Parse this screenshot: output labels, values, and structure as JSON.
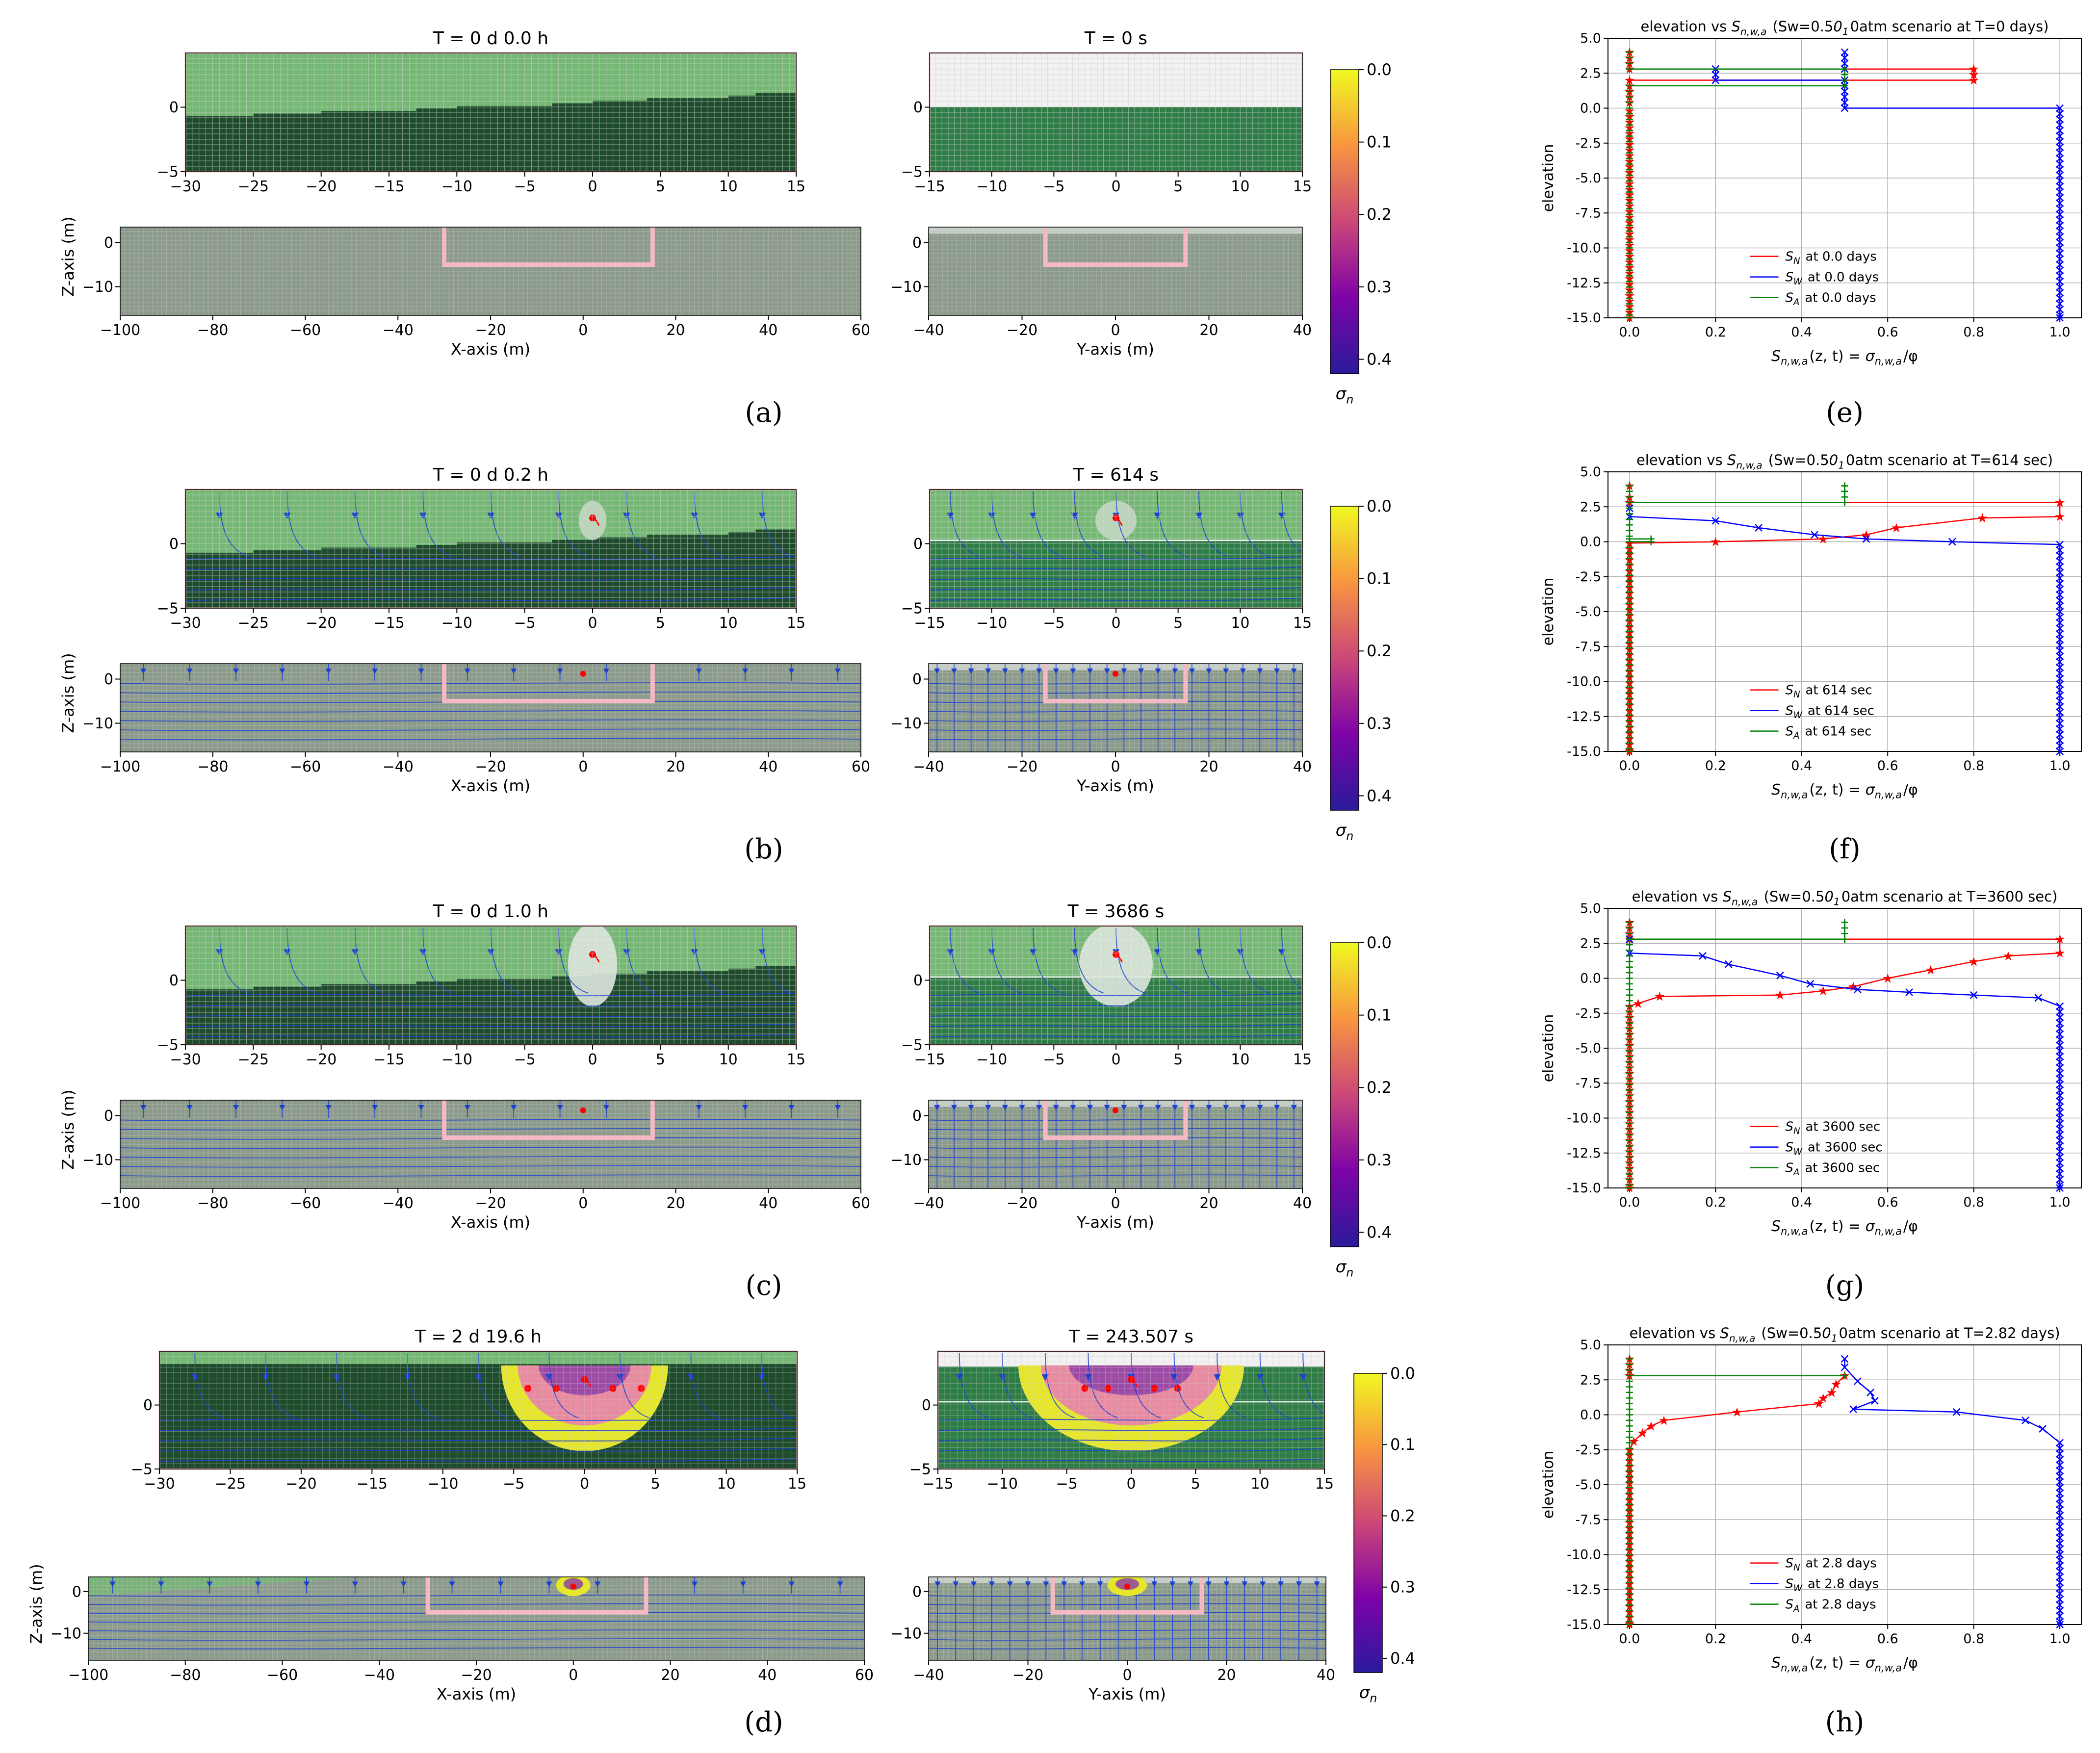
{
  "colors": {
    "light_green": "#74b874",
    "dark_green": "#1d4b2b",
    "mid_green": "#2e7d46",
    "background_grey": "#8c9a8c",
    "white_zone": "#f2f2f2",
    "frame_pink": "#f4b9c2",
    "streamline": "#1a3fd1",
    "tracer": "#ff0000",
    "n_line": "#ff0000",
    "w_line": "#0000ff",
    "a_line": "#008000",
    "plume_yellow": "#e6e62a",
    "plume_pink": "#e88aa0",
    "plume_purple": "#8a3aa8"
  },
  "colorbar": {
    "label": "σ_n",
    "ticks": [
      "0.0",
      "0.1",
      "0.2",
      "0.3",
      "0.4"
    ],
    "tick_values": [
      0.0,
      0.1,
      0.2,
      0.3,
      0.4
    ],
    "colormap": "plasma_r",
    "vmin": 0.0,
    "vmax": 0.42
  },
  "maps": {
    "x_zoom_ticks": [
      "−30",
      "−25",
      "−20",
      "−15",
      "−10",
      "−5",
      "0",
      "5",
      "10",
      "15"
    ],
    "x_zoom_tick_values": [
      -30,
      -25,
      -20,
      -15,
      -10,
      -5,
      0,
      5,
      10,
      15
    ],
    "y_zoom_ticks": [
      "−15",
      "−10",
      "−5",
      "0",
      "5",
      "10",
      "15"
    ],
    "y_zoom_tick_values": [
      -15,
      -10,
      -5,
      0,
      5,
      10,
      15
    ],
    "z_zoom_ticks": [
      "−5",
      "0"
    ],
    "z_zoom_tick_values": [
      -5,
      0
    ],
    "x_full_ticks": [
      "−100",
      "−80",
      "−60",
      "−40",
      "−20",
      "0",
      "20",
      "40",
      "60"
    ],
    "x_full_tick_values": [
      -100,
      -80,
      -60,
      -40,
      -20,
      0,
      20,
      40,
      60
    ],
    "y_full_ticks": [
      "−40",
      "−20",
      "0",
      "20",
      "40"
    ],
    "y_full_tick_values": [
      -40,
      -20,
      0,
      20,
      40
    ],
    "z_full_ticks": [
      "−10",
      "0"
    ],
    "z_full_tick_values": [
      -10,
      0
    ],
    "x_axis_label": "X-axis (m)",
    "y_axis_label": "Y-axis (m)",
    "z_axis_label": "Z-axis (m)",
    "rows": [
      {
        "label": "(a)",
        "x_title": "T = 0 d  0.0 h",
        "y_title": "T = 0 s",
        "state": 0
      },
      {
        "label": "(b)",
        "x_title": "T = 0 d  0.2 h",
        "y_title": "T = 614 s",
        "state": 1
      },
      {
        "label": "(c)",
        "x_title": "T = 0 d  1.0 h",
        "y_title": "T = 3686 s",
        "state": 2
      },
      {
        "label": "(d)",
        "x_title": "T = 2 d 19.6 h",
        "y_title": "T = 243.507 s",
        "state": 3
      }
    ]
  },
  "chart_data": [
    {
      "type": "line",
      "panel": "(e)",
      "title": "elevation vs S_{n,w,a} (Sw=0.50_10atm scenario at T=0 days)",
      "xlabel": "S_{n,w,a}(z, t) = σ_{n,w,a}/φ",
      "ylabel": "elevation",
      "xlim": [
        -0.05,
        1.05
      ],
      "ylim": [
        -15,
        5
      ],
      "grid": true,
      "legend_position": "lower-center",
      "xticks": [
        0.0,
        0.2,
        0.4,
        0.6,
        0.8,
        1.0
      ],
      "yticks": [
        5.0,
        2.5,
        0.0,
        -2.5,
        -5.0,
        -7.5,
        -10.0,
        -12.5,
        -15.0
      ],
      "series": [
        {
          "name": "S_N at 0.0 days",
          "color": "#ff0000",
          "marker": "star",
          "points": [
            [
              0,
              4
            ],
            [
              0,
              3.6
            ],
            [
              0,
              3.2
            ],
            [
              0,
              2.8
            ],
            [
              0.8,
              2.8
            ],
            [
              0.8,
              2.4
            ],
            [
              0.8,
              2.0
            ],
            [
              0,
              2.0
            ],
            [
              0,
              1.6
            ],
            [
              0,
              1.2
            ],
            [
              0,
              0.8
            ],
            [
              0,
              0.4
            ],
            [
              0,
              -0.2
            ],
            [
              0,
              -15
            ]
          ]
        },
        {
          "name": "S_W at 0.0 days",
          "color": "#0000ff",
          "marker": "x",
          "points": [
            [
              0.5,
              4
            ],
            [
              0.5,
              3.6
            ],
            [
              0.5,
              3.2
            ],
            [
              0.5,
              2.8
            ],
            [
              0.2,
              2.8
            ],
            [
              0.2,
              2.4
            ],
            [
              0.2,
              2.0
            ],
            [
              0.5,
              2.0
            ],
            [
              0.5,
              1.6
            ],
            [
              0.5,
              1.2
            ],
            [
              0.5,
              0.8
            ],
            [
              0.5,
              0.4
            ],
            [
              0.5,
              0
            ],
            [
              1.0,
              0
            ],
            [
              1.0,
              -15
            ]
          ]
        },
        {
          "name": "S_A at 0.0 days",
          "color": "#008000",
          "marker": "plus",
          "points": [
            [
              0,
              4
            ],
            [
              0,
              2.8
            ],
            [
              0.5,
              2.8
            ],
            [
              0.5,
              1.6
            ],
            [
              0,
              1.6
            ],
            [
              0,
              -15
            ]
          ]
        }
      ]
    },
    {
      "type": "line",
      "panel": "(f)",
      "title": "elevation vs S_{n,w,a} (Sw=0.50_10atm scenario at T=614 sec)",
      "xlabel": "S_{n,w,a}(z, t) = σ_{n,w,a}/φ",
      "ylabel": "elevation",
      "xlim": [
        -0.05,
        1.05
      ],
      "ylim": [
        -15,
        5
      ],
      "grid": true,
      "legend_position": "lower-center",
      "xticks": [
        0.0,
        0.2,
        0.4,
        0.6,
        0.8,
        1.0
      ],
      "yticks": [
        5.0,
        2.5,
        0.0,
        -2.5,
        -5.0,
        -7.5,
        -10.0,
        -12.5,
        -15.0
      ],
      "series": [
        {
          "name": "S_N at 614 sec",
          "color": "#ff0000",
          "marker": "star",
          "points": [
            [
              0,
              4
            ],
            [
              0,
              3.2
            ],
            [
              0,
              2.8
            ],
            [
              1.0,
              2.8
            ],
            [
              1.0,
              1.8
            ],
            [
              0.82,
              1.7
            ],
            [
              0.62,
              1.0
            ],
            [
              0.55,
              0.5
            ],
            [
              0.45,
              0.2
            ],
            [
              0.2,
              0.0
            ],
            [
              0,
              -0.1
            ],
            [
              0,
              -15
            ]
          ]
        },
        {
          "name": "S_W at 614 sec",
          "color": "#0000ff",
          "marker": "x",
          "points": [
            [
              0,
              2.4
            ],
            [
              0,
              1.8
            ],
            [
              0.2,
              1.5
            ],
            [
              0.3,
              1.0
            ],
            [
              0.43,
              0.5
            ],
            [
              0.55,
              0.2
            ],
            [
              0.75,
              0.0
            ],
            [
              1.0,
              -0.2
            ],
            [
              1.0,
              -15
            ]
          ]
        },
        {
          "name": "S_A at 614 sec",
          "color": "#008000",
          "marker": "plus",
          "points": [
            [
              0,
              4
            ],
            [
              0,
              2.8
            ],
            [
              0.5,
              2.8
            ],
            [
              0.5,
              4
            ],
            [
              0.5,
              2.8
            ],
            [
              0,
              2.8
            ],
            [
              0,
              0.2
            ],
            [
              0.05,
              0.2
            ],
            [
              0.05,
              0
            ],
            [
              0,
              0
            ],
            [
              0,
              -15
            ]
          ]
        }
      ]
    },
    {
      "type": "line",
      "panel": "(g)",
      "title": "elevation vs S_{n,w,a} (Sw=0.50_10atm scenario at T=3600 sec)",
      "xlabel": "S_{n,w,a}(z, t) = σ_{n,w,a}/φ",
      "ylabel": "elevation",
      "xlim": [
        -0.05,
        1.05
      ],
      "ylim": [
        -15,
        5
      ],
      "grid": true,
      "legend_position": "lower-center",
      "xticks": [
        0.0,
        0.2,
        0.4,
        0.6,
        0.8,
        1.0
      ],
      "yticks": [
        5.0,
        2.5,
        0.0,
        -2.5,
        -5.0,
        -7.5,
        -10.0,
        -12.5,
        -15.0
      ],
      "series": [
        {
          "name": "S_N at 3600 sec",
          "color": "#ff0000",
          "marker": "star",
          "points": [
            [
              0,
              4
            ],
            [
              0,
              2.8
            ],
            [
              1.0,
              2.8
            ],
            [
              1.0,
              1.8
            ],
            [
              0.88,
              1.6
            ],
            [
              0.8,
              1.2
            ],
            [
              0.7,
              0.6
            ],
            [
              0.6,
              0
            ],
            [
              0.52,
              -0.6
            ],
            [
              0.45,
              -0.9
            ],
            [
              0.35,
              -1.2
            ],
            [
              0.07,
              -1.3
            ],
            [
              0.02,
              -1.8
            ],
            [
              0,
              -2
            ],
            [
              0,
              -15
            ]
          ]
        },
        {
          "name": "S_W at 3600 sec",
          "color": "#0000ff",
          "marker": "x",
          "points": [
            [
              0,
              2.8
            ],
            [
              0,
              1.8
            ],
            [
              0.17,
              1.6
            ],
            [
              0.23,
              1.0
            ],
            [
              0.35,
              0.2
            ],
            [
              0.42,
              -0.4
            ],
            [
              0.53,
              -0.8
            ],
            [
              0.65,
              -1.0
            ],
            [
              0.8,
              -1.2
            ],
            [
              0.95,
              -1.4
            ],
            [
              1.0,
              -2
            ],
            [
              1.0,
              -15
            ]
          ]
        },
        {
          "name": "S_A at 3600 sec",
          "color": "#008000",
          "marker": "plus",
          "points": [
            [
              0,
              4
            ],
            [
              0,
              2.8
            ],
            [
              0.5,
              2.8
            ],
            [
              0.5,
              4
            ],
            [
              0.5,
              2.8
            ],
            [
              0,
              2.8
            ],
            [
              0,
              -15
            ]
          ]
        }
      ]
    },
    {
      "type": "line",
      "panel": "(h)",
      "title": "elevation vs S_{n,w,a} (Sw=0.50_10atm scenario at T=2.82 days)",
      "xlabel": "S_{n,w,a}(z, t) = σ_{n,w,a}/φ",
      "ylabel": "elevation",
      "xlim": [
        -0.05,
        1.05
      ],
      "ylim": [
        -15,
        5
      ],
      "grid": true,
      "legend_position": "lower-center",
      "xticks": [
        0.0,
        0.2,
        0.4,
        0.6,
        0.8,
        1.0
      ],
      "yticks": [
        5.0,
        2.5,
        0.0,
        -2.5,
        -5.0,
        -7.5,
        -10.0,
        -12.5,
        -15.0
      ],
      "series": [
        {
          "name": "S_N at 2.8 days",
          "color": "#ff0000",
          "marker": "star",
          "points": [
            [
              0,
              4
            ],
            [
              0,
              2.8
            ],
            [
              0.5,
              2.8
            ],
            [
              0.48,
              2.2
            ],
            [
              0.47,
              1.6
            ],
            [
              0.45,
              1.2
            ],
            [
              0.44,
              0.8
            ],
            [
              0.25,
              0.2
            ],
            [
              0.08,
              -0.4
            ],
            [
              0.05,
              -0.8
            ],
            [
              0.03,
              -1.3
            ],
            [
              0.01,
              -1.9
            ],
            [
              0,
              -2.5
            ],
            [
              0,
              -15
            ]
          ]
        },
        {
          "name": "S_W at 2.8 days",
          "color": "#0000ff",
          "marker": "x",
          "points": [
            [
              0.5,
              4
            ],
            [
              0.5,
              3.4
            ],
            [
              0.53,
              2.4
            ],
            [
              0.56,
              1.6
            ],
            [
              0.57,
              1.0
            ],
            [
              0.52,
              0.4
            ],
            [
              0.76,
              0.2
            ],
            [
              0.92,
              -0.4
            ],
            [
              0.96,
              -1.0
            ],
            [
              1.0,
              -2
            ],
            [
              1.0,
              -15
            ]
          ]
        },
        {
          "name": "S_A at 2.8 days",
          "color": "#008000",
          "marker": "plus",
          "points": [
            [
              0,
              4
            ],
            [
              0,
              2.8
            ],
            [
              0.5,
              2.8
            ],
            [
              0,
              2.8
            ],
            [
              0,
              -15
            ]
          ]
        }
      ]
    }
  ]
}
